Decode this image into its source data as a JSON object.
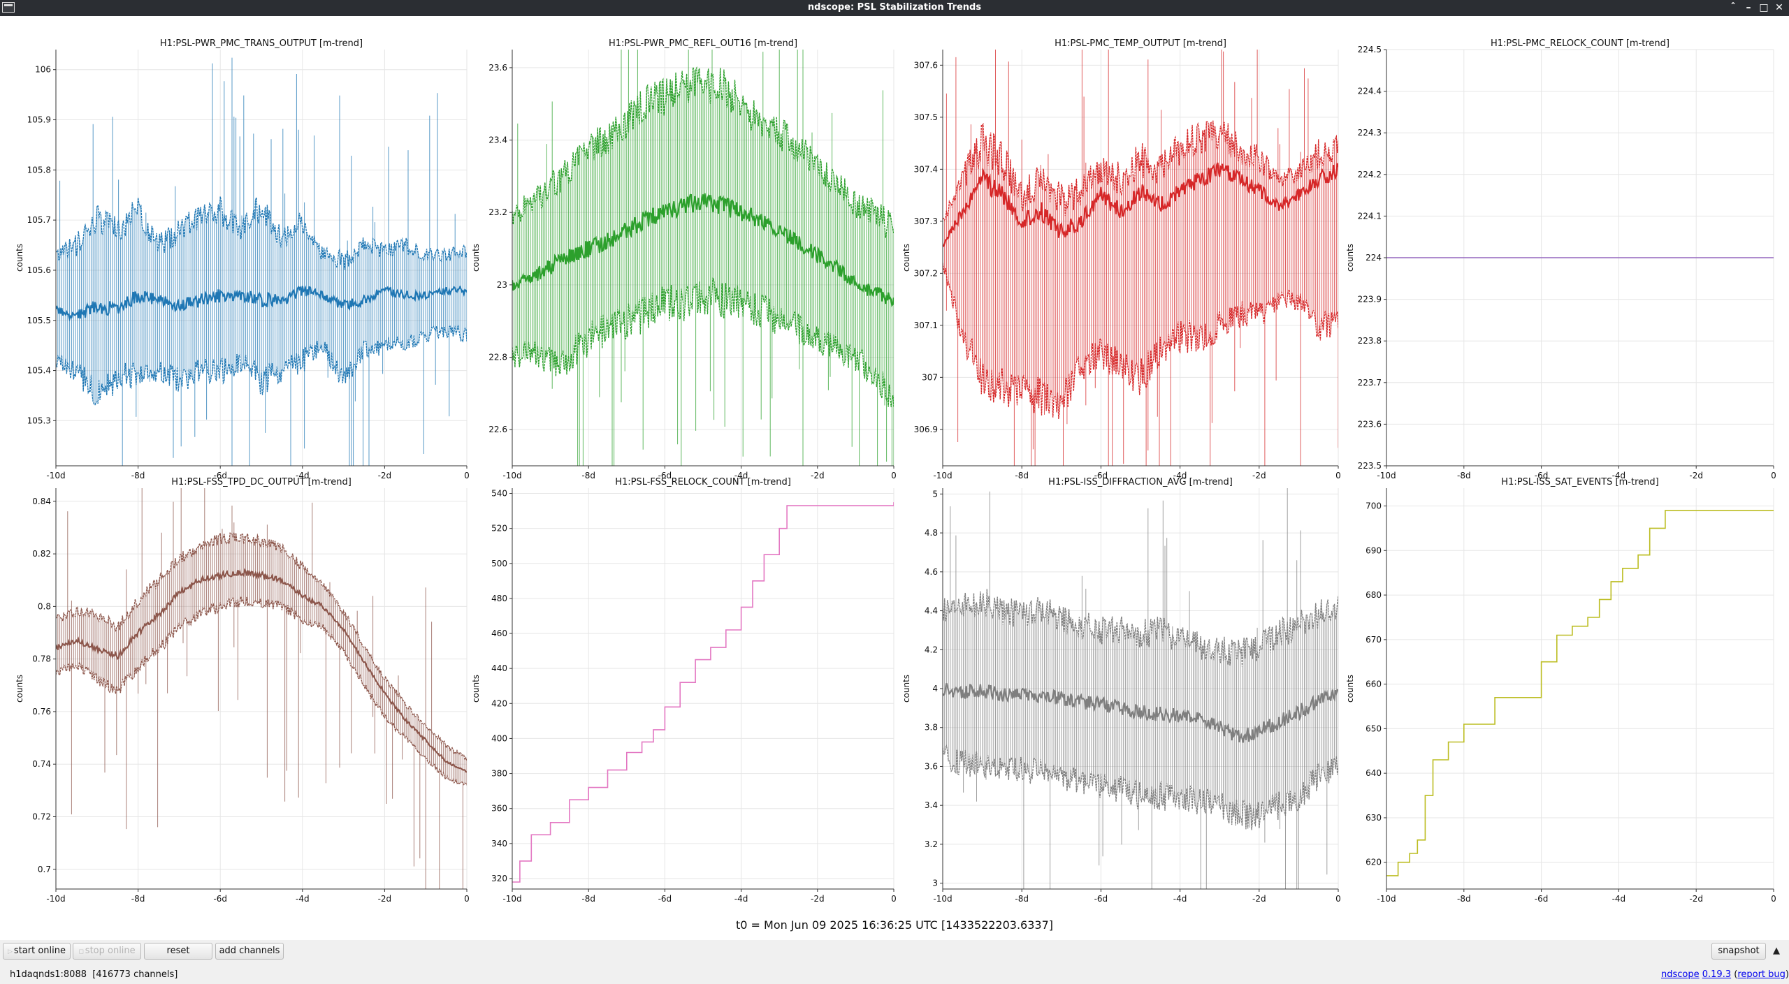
{
  "window": {
    "title": "ndscope: PSL Stabilization Trends",
    "controls": [
      "chevron-up-icon",
      "minimize-icon",
      "maximize-icon",
      "close-icon"
    ]
  },
  "plots": [
    {
      "title": "H1:PSL-PWR_PMC_TRANS_OUTPUT [m-trend]",
      "ylabel": "counts",
      "color": "#1f77b4",
      "yticks": [
        "106",
        "105.9",
        "105.8",
        "105.7",
        "105.6",
        "105.5",
        "105.4",
        "105.3"
      ],
      "xticks": [
        "-10d",
        "-8d",
        "-6d",
        "-4d",
        "-2d",
        "0"
      ],
      "chart_data": {
        "type": "line",
        "x_unit": "days",
        "ylim": [
          105.21,
          106.04
        ],
        "xlim": [
          -10,
          0
        ],
        "grid": true,
        "series": [
          {
            "x": [
              -10,
              -9.5,
              -9,
              -8.5,
              -8,
              -7.5,
              -7,
              -6.5,
              -6,
              -5.5,
              -5,
              -4.5,
              -4,
              -3.5,
              -3,
              -2.5,
              -2,
              -1.5,
              -1,
              -0.5,
              0
            ],
            "min": [
              105.42,
              105.4,
              105.35,
              105.38,
              105.4,
              105.4,
              105.38,
              105.4,
              105.4,
              105.42,
              105.38,
              105.4,
              105.42,
              105.45,
              105.38,
              105.44,
              105.45,
              105.45,
              105.47,
              105.48,
              105.47
            ],
            "mean": [
              105.52,
              105.51,
              105.53,
              105.52,
              105.55,
              105.54,
              105.53,
              105.54,
              105.55,
              105.55,
              105.54,
              105.54,
              105.56,
              105.55,
              105.53,
              105.54,
              105.56,
              105.55,
              105.55,
              105.56,
              105.56
            ],
            "max": [
              105.63,
              105.65,
              105.7,
              105.68,
              105.72,
              105.65,
              105.68,
              105.7,
              105.72,
              105.68,
              105.73,
              105.66,
              105.7,
              105.63,
              105.62,
              105.65,
              105.64,
              105.65,
              105.63,
              105.63,
              105.64
            ]
          }
        ]
      }
    },
    {
      "title": "H1:PSL-PWR_PMC_REFL_OUT16 [m-trend]",
      "ylabel": "counts",
      "color": "#2ca02c",
      "yticks": [
        "23.6",
        "23.4",
        "23.2",
        "23",
        "22.8",
        "22.6"
      ],
      "xticks": [
        "-10d",
        "-8d",
        "-6d",
        "-4d",
        "-2d",
        "0"
      ],
      "chart_data": {
        "type": "line",
        "x_unit": "days",
        "ylim": [
          22.5,
          23.65
        ],
        "xlim": [
          -10,
          0
        ],
        "grid": true,
        "series": [
          {
            "x": [
              -10,
              -9.5,
              -9,
              -8.5,
              -8,
              -7.5,
              -7,
              -6.5,
              -6,
              -5.5,
              -5,
              -4.5,
              -4,
              -3.5,
              -3,
              -2.5,
              -2,
              -1.5,
              -1,
              -0.5,
              0
            ],
            "min": [
              22.8,
              22.82,
              22.78,
              22.8,
              22.85,
              22.88,
              22.9,
              22.92,
              22.95,
              22.95,
              22.97,
              22.96,
              22.95,
              22.93,
              22.9,
              22.88,
              22.85,
              22.82,
              22.8,
              22.75,
              22.68
            ],
            "mean": [
              23.0,
              23.02,
              23.05,
              23.08,
              23.1,
              23.12,
              23.15,
              23.18,
              23.2,
              23.22,
              23.23,
              23.22,
              23.2,
              23.18,
              23.15,
              23.12,
              23.08,
              23.05,
              23.0,
              22.98,
              22.95
            ],
            "max": [
              23.2,
              23.22,
              23.28,
              23.32,
              23.38,
              23.4,
              23.45,
              23.5,
              23.52,
              23.55,
              23.55,
              23.55,
              23.5,
              23.45,
              23.42,
              23.38,
              23.32,
              23.28,
              23.22,
              23.2,
              23.15
            ]
          }
        ]
      }
    },
    {
      "title": "H1:PSL-PMC_TEMP_OUTPUT [m-trend]",
      "ylabel": "counts",
      "color": "#d62728",
      "yticks": [
        "307.6",
        "307.5",
        "307.4",
        "307.3",
        "307.2",
        "307.1",
        "307",
        "306.9"
      ],
      "xticks": [
        "-10d",
        "-8d",
        "-6d",
        "-4d",
        "-2d",
        "0"
      ],
      "chart_data": {
        "type": "line",
        "x_unit": "days",
        "ylim": [
          306.83,
          307.63
        ],
        "xlim": [
          -10,
          0
        ],
        "grid": true,
        "series": [
          {
            "x": [
              -10,
              -9.5,
              -9,
              -8.5,
              -8,
              -7.5,
              -7,
              -6.5,
              -6,
              -5.5,
              -5,
              -4.5,
              -4,
              -3.5,
              -3,
              -2.5,
              -2,
              -1.5,
              -1,
              -0.5,
              0
            ],
            "min": [
              307.22,
              307.08,
              307.0,
              306.98,
              306.98,
              306.96,
              306.95,
              307.02,
              307.05,
              307.02,
              307.0,
              307.05,
              307.08,
              307.08,
              307.1,
              307.12,
              307.12,
              307.15,
              307.15,
              307.1,
              307.1
            ],
            "mean": [
              307.25,
              307.32,
              307.38,
              307.35,
              307.3,
              307.32,
              307.28,
              307.3,
              307.35,
              307.32,
              307.36,
              307.33,
              307.36,
              307.38,
              307.4,
              307.38,
              307.36,
              307.33,
              307.35,
              307.38,
              307.4
            ],
            "max": [
              307.3,
              307.38,
              307.45,
              307.42,
              307.35,
              307.38,
              307.34,
              307.36,
              307.4,
              307.38,
              307.42,
              307.4,
              307.44,
              307.46,
              307.47,
              307.44,
              307.42,
              307.38,
              307.4,
              307.43,
              307.45
            ]
          }
        ]
      }
    },
    {
      "title": "H1:PSL-PMC_RELOCK_COUNT [m-trend]",
      "ylabel": "counts",
      "color": "#9467bd",
      "yticks": [
        "224.5",
        "224.4",
        "224.3",
        "224.2",
        "224.1",
        "224",
        "223.9",
        "223.8",
        "223.7",
        "223.6",
        "223.5"
      ],
      "xticks": [
        "-10d",
        "-8d",
        "-6d",
        "-4d",
        "-2d",
        "0"
      ],
      "chart_data": {
        "type": "line",
        "x_unit": "days",
        "ylim": [
          223.5,
          224.5
        ],
        "xlim": [
          -10,
          0
        ],
        "grid": true,
        "series": [
          {
            "x": [
              -10,
              0
            ],
            "values": [
              224,
              224
            ]
          }
        ]
      }
    },
    {
      "title": "H1:PSL-FSS_TPD_DC_OUTPUT [m-trend]",
      "ylabel": "counts",
      "color": "#8c564b",
      "yticks": [
        "0.84",
        "0.82",
        "0.8",
        "0.78",
        "0.76",
        "0.74",
        "0.72",
        "0.7"
      ],
      "xticks": [
        "-10d",
        "-8d",
        "-6d",
        "-4d",
        "-2d",
        "0"
      ],
      "chart_data": {
        "type": "line",
        "x_unit": "days",
        "ylim": [
          0.6925,
          0.845
        ],
        "xlim": [
          -10,
          0
        ],
        "grid": true,
        "series": [
          {
            "x": [
              -10,
              -9.5,
              -9,
              -8.5,
              -8,
              -7.5,
              -7,
              -6.5,
              -6,
              -5.5,
              -5,
              -4.5,
              -4,
              -3.5,
              -3,
              -2.5,
              -2,
              -1.5,
              -1,
              -0.5,
              0
            ],
            "min": [
              0.775,
              0.778,
              0.772,
              0.768,
              0.777,
              0.784,
              0.792,
              0.797,
              0.8,
              0.802,
              0.801,
              0.8,
              0.795,
              0.792,
              0.783,
              0.77,
              0.758,
              0.75,
              0.742,
              0.735,
              0.732
            ],
            "mean": [
              0.784,
              0.787,
              0.784,
              0.781,
              0.79,
              0.797,
              0.805,
              0.81,
              0.812,
              0.813,
              0.812,
              0.81,
              0.804,
              0.8,
              0.791,
              0.779,
              0.767,
              0.757,
              0.749,
              0.741,
              0.737
            ],
            "max": [
              0.795,
              0.798,
              0.797,
              0.792,
              0.802,
              0.81,
              0.818,
              0.822,
              0.826,
              0.826,
              0.825,
              0.822,
              0.815,
              0.808,
              0.798,
              0.785,
              0.773,
              0.763,
              0.755,
              0.747,
              0.742
            ]
          }
        ]
      }
    },
    {
      "title": "H1:PSL-FSS_RELOCK_COUNT [m-trend]",
      "ylabel": "counts",
      "color": "#e377c2",
      "yticks": [
        "540",
        "520",
        "500",
        "480",
        "460",
        "440",
        "420",
        "400",
        "380",
        "360",
        "340",
        "320"
      ],
      "xticks": [
        "-10d",
        "-8d",
        "-6d",
        "-4d",
        "-2d",
        "0"
      ],
      "chart_data": {
        "type": "line",
        "x_unit": "days",
        "ylim": [
          314,
          543
        ],
        "xlim": [
          -10,
          0
        ],
        "grid": true,
        "series": [
          {
            "x": [
              -10,
              -9.8,
              -9.5,
              -9,
              -8.5,
              -8,
              -7.5,
              -7,
              -6.6,
              -6.3,
              -6,
              -5.6,
              -5.2,
              -4.8,
              -4.4,
              -4.0,
              -3.7,
              -3.4,
              -3.0,
              -2.8,
              -2.0,
              -1.0,
              0
            ],
            "values": [
              318,
              330,
              345,
              352,
              365,
              372,
              382,
              392,
              398,
              405,
              418,
              432,
              445,
              452,
              462,
              475,
              490,
              505,
              520,
              533,
              533,
              533,
              535
            ]
          }
        ]
      }
    },
    {
      "title": "H1:PSL-ISS_DIFFRACTION_AVG [m-trend]",
      "ylabel": "counts",
      "color": "#7f7f7f",
      "yticks": [
        "5",
        "4.8",
        "4.6",
        "4.4",
        "4.2",
        "4",
        "3.8",
        "3.6",
        "3.4",
        "3.2",
        "3"
      ],
      "xticks": [
        "-10d",
        "-8d",
        "-6d",
        "-4d",
        "-2d",
        "0"
      ],
      "chart_data": {
        "type": "line",
        "x_unit": "days",
        "ylim": [
          2.97,
          5.03
        ],
        "xlim": [
          -10,
          0
        ],
        "grid": true,
        "series": [
          {
            "x": [
              -10,
              -9.5,
              -9,
              -8.5,
              -8,
              -7.5,
              -7,
              -6.5,
              -6,
              -5.5,
              -5,
              -4.5,
              -4,
              -3.5,
              -3,
              -2.5,
              -2,
              -1.5,
              -1,
              -0.5,
              0
            ],
            "min": [
              3.65,
              3.62,
              3.6,
              3.6,
              3.58,
              3.57,
              3.55,
              3.52,
              3.5,
              3.48,
              3.45,
              3.45,
              3.44,
              3.42,
              3.4,
              3.35,
              3.35,
              3.4,
              3.45,
              3.55,
              3.6
            ],
            "mean": [
              4.0,
              3.98,
              3.99,
              3.97,
              3.97,
              3.96,
              3.95,
              3.93,
              3.92,
              3.9,
              3.88,
              3.87,
              3.86,
              3.84,
              3.8,
              3.75,
              3.78,
              3.83,
              3.88,
              3.93,
              3.98
            ],
            "max": [
              4.4,
              4.42,
              4.45,
              4.4,
              4.38,
              4.42,
              4.35,
              4.33,
              4.3,
              4.3,
              4.28,
              4.3,
              4.25,
              4.22,
              4.2,
              4.18,
              4.22,
              4.28,
              4.32,
              4.38,
              4.42
            ]
          }
        ]
      }
    },
    {
      "title": "H1:PSL-ISS_SAT_EVENTS [m-trend]",
      "ylabel": "counts",
      "color": "#bcbd22",
      "yticks": [
        "700",
        "690",
        "680",
        "670",
        "660",
        "650",
        "640",
        "630",
        "620"
      ],
      "xticks": [
        "-10d",
        "-8d",
        "-6d",
        "-4d",
        "-2d",
        "0"
      ],
      "chart_data": {
        "type": "line",
        "x_unit": "days",
        "ylim": [
          614,
          704
        ],
        "xlim": [
          -10,
          0
        ],
        "grid": true,
        "series": [
          {
            "x": [
              -10,
              -9.7,
              -9.4,
              -9.2,
              -9.0,
              -8.8,
              -8.4,
              -8.0,
              -7.2,
              -6.6,
              -6.0,
              -5.6,
              -5.2,
              -4.8,
              -4.5,
              -4.2,
              -3.9,
              -3.5,
              -3.2,
              -2.8,
              -2.0,
              -1.0,
              0
            ],
            "values": [
              617,
              620,
              622,
              625,
              635,
              643,
              647,
              651,
              657,
              657,
              665,
              671,
              673,
              675,
              679,
              683,
              686,
              689,
              695,
              699,
              699,
              699,
              699
            ]
          }
        ]
      }
    }
  ],
  "t0_label": "t0 = Mon Jun 09 2025 16:36:25 UTC [1433522203.6337]",
  "toolbar": {
    "start_online": "start online",
    "stop_online": "stop online",
    "reset": "reset",
    "add_channels": "add channels",
    "snapshot": "snapshot"
  },
  "status": {
    "server": "h1daqnds1:8088  [416773 channels]",
    "app_name": "ndscope",
    "version": "0.19.3",
    "report_bug": "report bug"
  }
}
